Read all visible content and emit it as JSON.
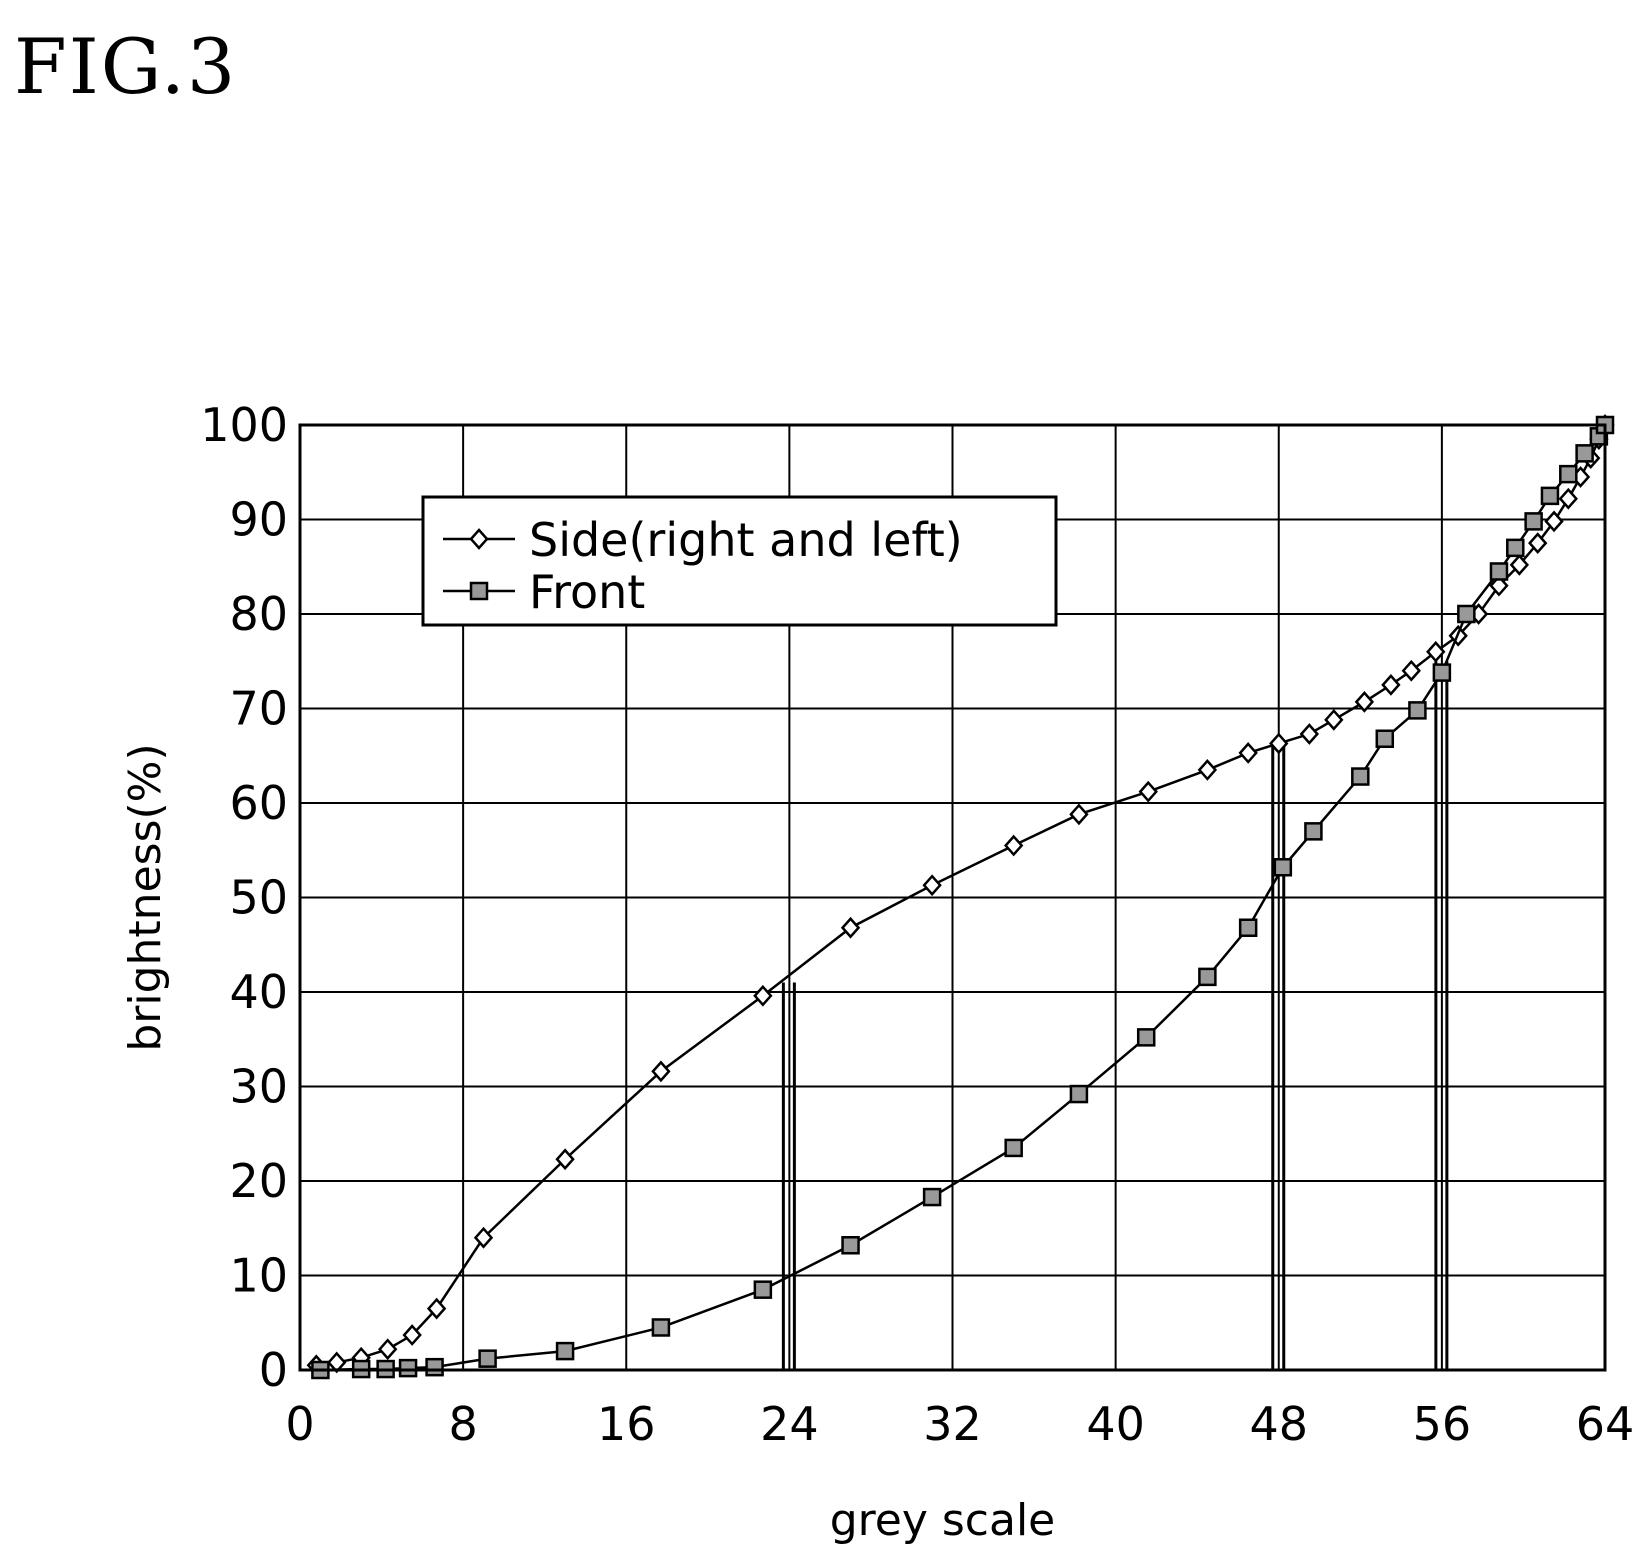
{
  "figure_label": "FIG.3",
  "chart_data": {
    "type": "line",
    "title": "",
    "xlabel": "grey scale",
    "ylabel": "brightness(%)",
    "xlim": [
      0,
      64
    ],
    "ylim": [
      0,
      100
    ],
    "xticks": [
      0,
      8,
      16,
      24,
      32,
      40,
      48,
      56,
      64
    ],
    "yticks": [
      0,
      10,
      20,
      30,
      40,
      50,
      60,
      70,
      80,
      90,
      100
    ],
    "grid": true,
    "legend_position": "top-left",
    "series": [
      {
        "name": "Side(right and left)",
        "marker": "diamond",
        "x": [
          0.8,
          1.8,
          3,
          4.3,
          5.5,
          6.7,
          9,
          13,
          17.7,
          22.7,
          27,
          31,
          35,
          38.2,
          41.6,
          44.5,
          46.5,
          48,
          49.5,
          50.7,
          52.2,
          53.5,
          54.5,
          55.7,
          56.8,
          57.8,
          58.8,
          59.8,
          60.7,
          61.5,
          62.2,
          62.8,
          63.3,
          63.7,
          64
        ],
        "y": [
          0.5,
          0.8,
          1.3,
          2.2,
          3.7,
          6.5,
          14,
          22.3,
          31.6,
          39.6,
          46.8,
          51.3,
          55.5,
          58.8,
          61.2,
          63.5,
          65.3,
          66.3,
          67.3,
          68.8,
          70.7,
          72.5,
          74,
          76,
          77.7,
          80,
          83,
          85.2,
          87.5,
          89.8,
          92.2,
          94.5,
          96.5,
          98.5,
          100
        ]
      },
      {
        "name": "Front",
        "marker": "square",
        "x": [
          1,
          3,
          4.2,
          5.3,
          6.6,
          9.2,
          13,
          17.7,
          22.7,
          27,
          31,
          35,
          38.2,
          41.5,
          44.5,
          46.5,
          48.2,
          49.7,
          52,
          53.2,
          54.8,
          56,
          57.2,
          58.8,
          59.6,
          60.5,
          61.3,
          62.2,
          63,
          63.7,
          64
        ],
        "y": [
          0,
          0.1,
          0.1,
          0.2,
          0.3,
          1.2,
          2,
          4.5,
          8.5,
          13.2,
          18.3,
          23.5,
          29.2,
          35.2,
          41.6,
          46.8,
          53.2,
          57,
          62.8,
          66.8,
          69.8,
          73.8,
          80,
          84.5,
          87,
          89.8,
          92.5,
          94.8,
          97,
          98.8,
          100
        ]
      }
    ],
    "vertical_markers": [
      {
        "x": 24,
        "y_top": 41
      },
      {
        "x": 48,
        "y_top": 66
      },
      {
        "x": 56,
        "y_top": 75
      }
    ]
  }
}
